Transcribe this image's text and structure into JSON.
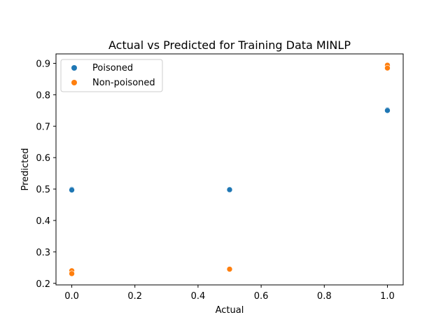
{
  "chart_data": {
    "type": "scatter",
    "title": "Actual vs Predicted for Training Data MINLP",
    "xlabel": "Actual",
    "ylabel": "Predicted",
    "xlim": [
      -0.05,
      1.05
    ],
    "ylim": [
      0.195,
      0.93
    ],
    "xticks": [
      0.0,
      0.2,
      0.4,
      0.6,
      0.8,
      1.0
    ],
    "xtick_labels": [
      "0.0",
      "0.2",
      "0.4",
      "0.6",
      "0.8",
      "1.0"
    ],
    "yticks": [
      0.2,
      0.3,
      0.4,
      0.5,
      0.6,
      0.7,
      0.8,
      0.9
    ],
    "ytick_labels": [
      "0.2",
      "0.3",
      "0.4",
      "0.5",
      "0.6",
      "0.7",
      "0.8",
      "0.9"
    ],
    "grid": false,
    "legend": "top-left",
    "series": [
      {
        "name": "Poisoned",
        "color": "#1f77b4",
        "points": [
          {
            "x": 0.0,
            "y": 0.499
          },
          {
            "x": 0.0,
            "y": 0.497
          },
          {
            "x": 0.5,
            "y": 0.498
          },
          {
            "x": 1.0,
            "y": 0.752
          },
          {
            "x": 1.0,
            "y": 0.75
          }
        ]
      },
      {
        "name": "Non-poisoned",
        "color": "#ff7f0e",
        "points": [
          {
            "x": 0.0,
            "y": 0.24
          },
          {
            "x": 0.0,
            "y": 0.231
          },
          {
            "x": 0.5,
            "y": 0.245
          },
          {
            "x": 1.0,
            "y": 0.894
          },
          {
            "x": 1.0,
            "y": 0.885
          }
        ]
      }
    ]
  }
}
